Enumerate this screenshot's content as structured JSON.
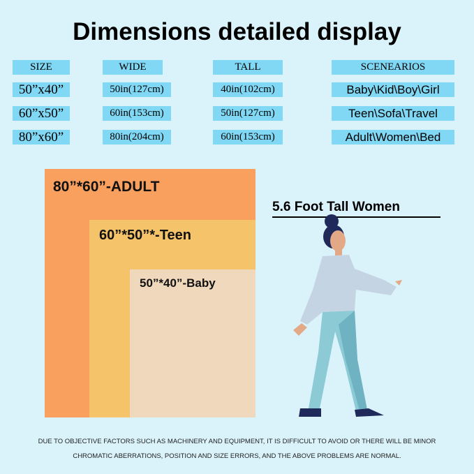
{
  "title": "Dimensions detailed display",
  "table": {
    "headers": [
      "SIZE",
      "WIDE",
      "TALL",
      "SCENEARIOS"
    ],
    "rows": [
      [
        "50”x40”",
        "50in(127cm)",
        "40in(102cm)",
        "Baby\\Kid\\Boy\\Girl"
      ],
      [
        "60”x50”",
        "60in(153cm)",
        "50in(127cm)",
        "Teen\\Sofa\\Travel"
      ],
      [
        "80”x60”",
        "80in(204cm)",
        "60in(153cm)",
        "Adult\\Women\\Bed"
      ]
    ]
  },
  "sizes": {
    "adult": {
      "label": "80”*60”-ADULT",
      "color": "#f9a05f"
    },
    "teen": {
      "label": "60”*50”*-Teen",
      "color": "#f5c46a"
    },
    "baby": {
      "label": "50”*40”-Baby",
      "color": "#f0d8bc"
    }
  },
  "figure_caption": "5.6 Foot Tall Women",
  "note": [
    "DUE TO OBJECTIVE FACTORS SUCH AS MACHINERY AND EQUIPMENT, IT IS DIFFICULT TO AVOID OR THERE WILL BE MINOR",
    "CHROMATIC ABERRATIONS, POSITION AND SIZE ERRORS, AND THE ABOVE PROBLEMS ARE NORMAL."
  ]
}
